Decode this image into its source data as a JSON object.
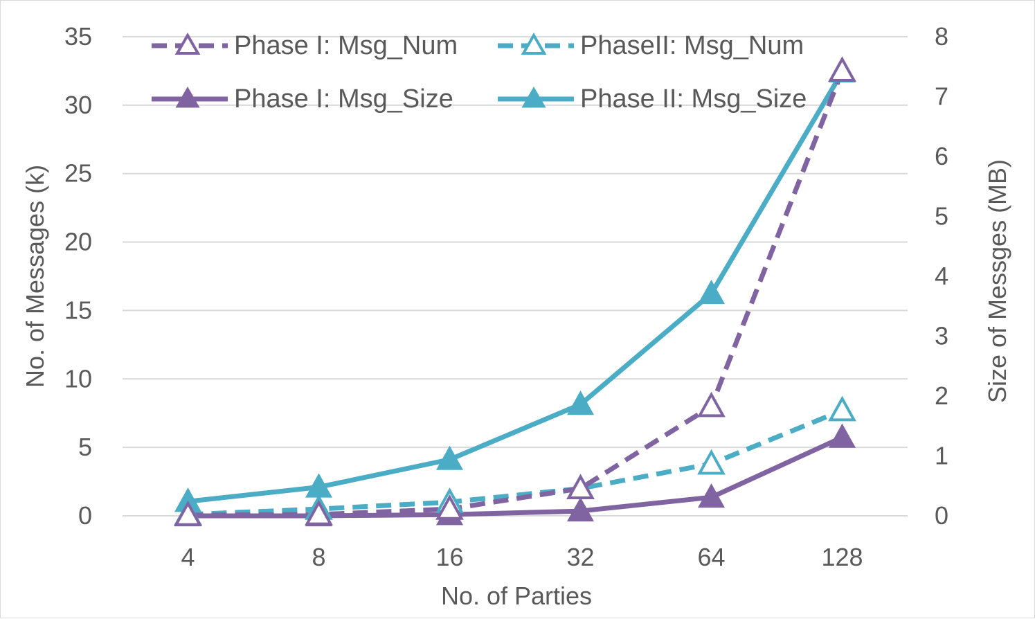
{
  "chart_data": {
    "type": "line",
    "title": "",
    "categories": [
      "4",
      "8",
      "16",
      "32",
      "64",
      "128"
    ],
    "xlabel": "No. of Parties",
    "ylabel": "No. of Messages (k)",
    "y2label": "Size of Messges (MB)",
    "ylim": [
      0,
      35
    ],
    "y2lim": [
      0,
      8
    ],
    "yticks": [
      "0",
      "5",
      "10",
      "15",
      "20",
      "25",
      "30",
      "35"
    ],
    "y2ticks": [
      "0",
      "1",
      "2",
      "3",
      "4",
      "5",
      "6",
      "7",
      "8"
    ],
    "grid": true,
    "legend_position": "top",
    "series": [
      {
        "name": "Phase I: Msg_Num",
        "axis": "left",
        "style": "dashed",
        "marker": "hollow-triangle",
        "color": "#8064a2",
        "values": [
          0.05,
          0.1,
          0.5,
          2.0,
          8.0,
          32.5
        ]
      },
      {
        "name": "PhaseII: Msg_Num",
        "axis": "left",
        "style": "dashed",
        "marker": "hollow-triangle",
        "color": "#4bacc6",
        "values": [
          0.1,
          0.5,
          1.0,
          2.0,
          3.8,
          7.7
        ]
      },
      {
        "name": "Phase I: Msg_Size",
        "axis": "right",
        "style": "solid",
        "marker": "filled-triangle",
        "color": "#8064a2",
        "values": [
          0.0,
          0.0,
          0.02,
          0.08,
          0.31,
          1.31
        ]
      },
      {
        "name": "Phase II: Msg_Size",
        "axis": "right",
        "style": "solid",
        "marker": "filled-triangle",
        "color": "#4bacc6",
        "values": [
          0.24,
          0.48,
          0.94,
          1.86,
          3.71,
          7.41
        ]
      }
    ]
  }
}
